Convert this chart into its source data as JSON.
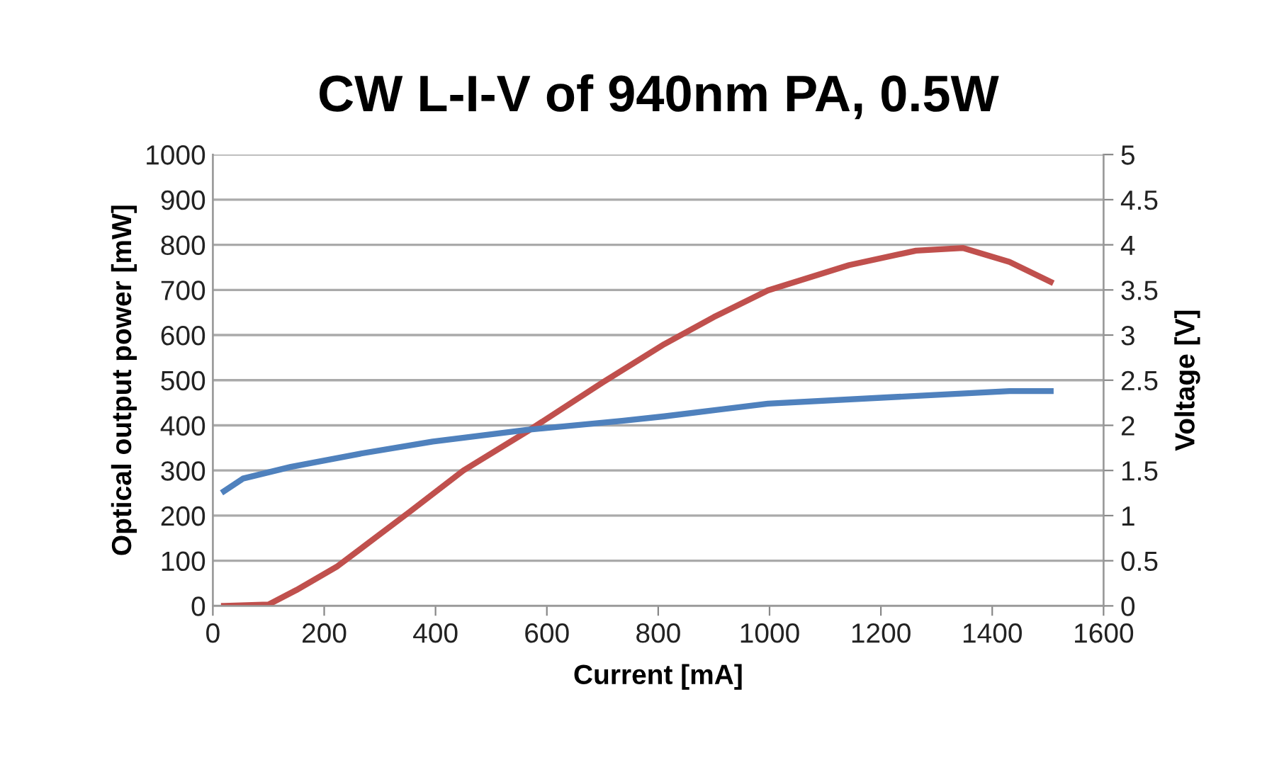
{
  "chart_data": {
    "type": "line",
    "title": "CW L-I-V of 940nm PA, 0.5W",
    "xlabel": "Current [mA]",
    "ylabel": "Optical output power [mW]",
    "y2label": "Voltage [V]",
    "series": [
      {
        "color": "#c0504d",
        "x": [
          20,
          100,
          150,
          224,
          352,
          450,
          564,
          700,
          811,
          900,
          997,
          1143,
          1263,
          1347,
          1431,
          1505
        ],
        "values": [
          0,
          3,
          35,
          88,
          207,
          300,
          386,
          495,
          580,
          640,
          699,
          755,
          787,
          793,
          762,
          718
        ]
      },
      {
        "color": "#4f81bd",
        "axis": "y2",
        "x": [
          20,
          54,
          140,
          268,
          395,
          564,
          735,
          811,
          997,
          1212,
          1431,
          1505
        ],
        "values": [
          1.27,
          1.41,
          1.54,
          1.69,
          1.82,
          1.95,
          2.05,
          2.1,
          2.24,
          2.31,
          2.38,
          2.38
        ]
      }
    ],
    "xlim": [
      0,
      1600
    ],
    "xticks": [
      0,
      200,
      400,
      600,
      800,
      1000,
      1200,
      1400,
      1600
    ],
    "ylim": [
      0,
      1000
    ],
    "yticks": [
      0,
      100,
      200,
      300,
      400,
      500,
      600,
      700,
      800,
      900,
      1000
    ],
    "y2lim": [
      0,
      5
    ],
    "y2ticks": [
      0,
      0.5,
      1,
      1.5,
      2,
      2.5,
      3,
      3.5,
      4,
      4.5,
      5
    ],
    "grid": "y",
    "legend": false
  }
}
